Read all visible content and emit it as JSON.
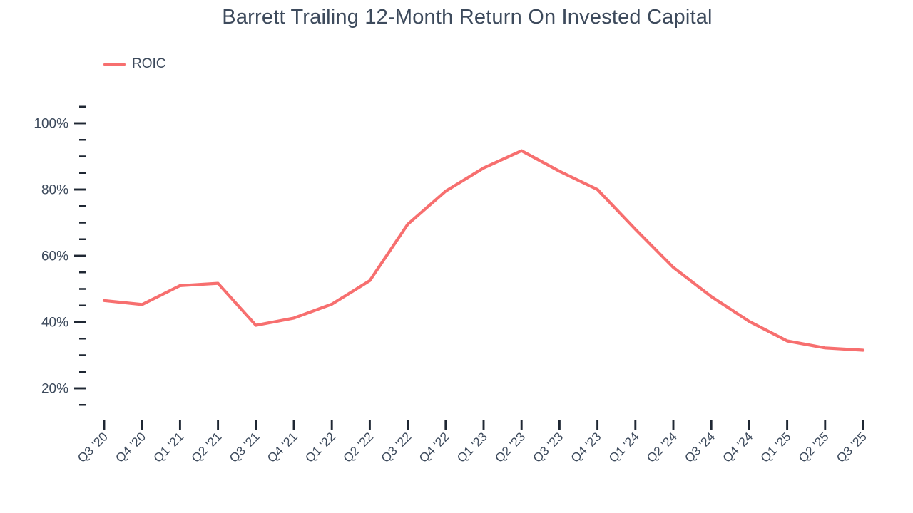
{
  "header": {
    "title": "Barrett Trailing 12-Month Return On Invested Capital"
  },
  "legend": {
    "label": "ROIC",
    "swatch_color": "#f76f6f"
  },
  "chart_data": {
    "type": "line",
    "title": "Barrett Trailing 12-Month Return On Invested Capital",
    "categories": [
      "Q3 '20",
      "Q4 '20",
      "Q1 '21",
      "Q2 '21",
      "Q3 '21",
      "Q4 '21",
      "Q1 '22",
      "Q2 '22",
      "Q3 '22",
      "Q4 '22",
      "Q1 '23",
      "Q2 '23",
      "Q3 '23",
      "Q4 '23",
      "Q1 '24",
      "Q2 '24",
      "Q3 '24",
      "Q4 '24",
      "Q1 '25",
      "Q2 '25",
      "Q3 '25"
    ],
    "series": [
      {
        "name": "ROIC",
        "color": "#f76f6f",
        "values": [
          46.5,
          45.3,
          51.0,
          51.7,
          39.0,
          41.2,
          45.4,
          52.5,
          69.5,
          79.5,
          86.5,
          91.7,
          85.5,
          80.0,
          68.0,
          56.5,
          47.7,
          40.2,
          34.3,
          32.2,
          31.5
        ]
      }
    ],
    "xlabel": "",
    "ylabel": "",
    "y_axis": {
      "major_tick_labels": [
        "100%",
        "80%",
        "60%",
        "40%",
        "20%"
      ],
      "major_ticks": [
        100,
        80,
        60,
        40,
        20
      ],
      "minor_tick_step": 5,
      "minor_tick_min": 15,
      "minor_tick_max": 105,
      "tick_format": "percent"
    },
    "ylim": [
      13,
      107
    ],
    "grid": false,
    "legend_position": "top-left",
    "colors": {
      "line": "#f76f6f",
      "tick": "#1f2733",
      "axis_label": "#3d4a5c",
      "title": "#3d4a5c"
    }
  }
}
